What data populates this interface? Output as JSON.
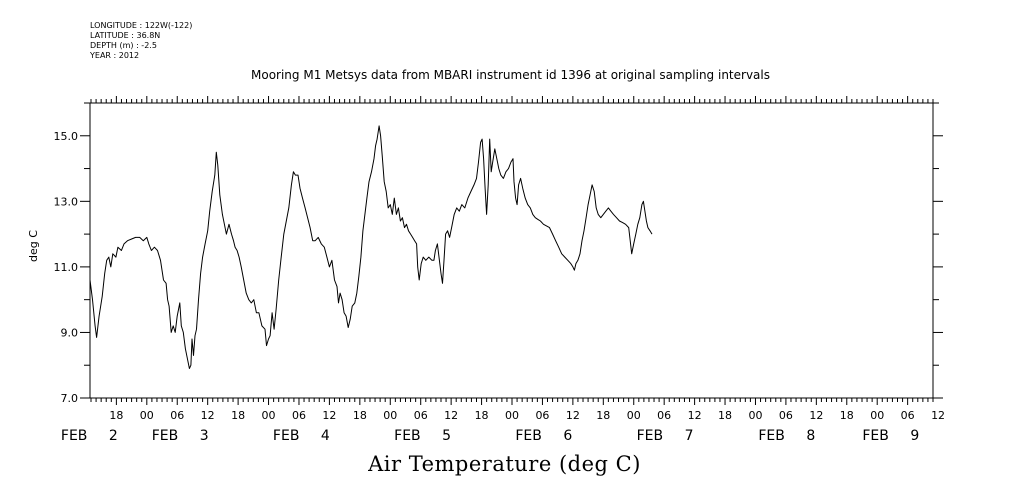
{
  "meta": {
    "longitude": "LONGITUDE : 122W(-122)",
    "latitude": "LATITUDE : 36.8N",
    "depth": "DEPTH (m) : -2.5",
    "year": "YEAR : 2012"
  },
  "chart_data": {
    "type": "line",
    "title": "Mooring M1 Metsys data from MBARI instrument id 1396 at original sampling intervals",
    "bottom_title": "Air Temperature (deg C)",
    "ylabel": "deg C",
    "ylim": [
      7.0,
      16.0
    ],
    "yticks": [
      7.0,
      9.0,
      11.0,
      13.0,
      15.0
    ],
    "ytick_labels": [
      "7.0",
      "9.0",
      "11.0",
      "13.0",
      "15.0"
    ],
    "x_unit": "hours since FEB 1 00:00 (2012)",
    "xlim": [
      36.8,
      203.0
    ],
    "hour_ticks": [
      {
        "x": 42,
        "label": "18"
      },
      {
        "x": 48,
        "label": "00"
      },
      {
        "x": 54,
        "label": "06"
      },
      {
        "x": 60,
        "label": "12"
      },
      {
        "x": 66,
        "label": "18"
      },
      {
        "x": 72,
        "label": "00"
      },
      {
        "x": 78,
        "label": "06"
      },
      {
        "x": 84,
        "label": "12"
      },
      {
        "x": 90,
        "label": "18"
      },
      {
        "x": 96,
        "label": "00"
      },
      {
        "x": 102,
        "label": "06"
      },
      {
        "x": 108,
        "label": "12"
      },
      {
        "x": 114,
        "label": "18"
      },
      {
        "x": 120,
        "label": "00"
      },
      {
        "x": 126,
        "label": "06"
      },
      {
        "x": 132,
        "label": "12"
      },
      {
        "x": 138,
        "label": "18"
      },
      {
        "x": 144,
        "label": "00"
      },
      {
        "x": 150,
        "label": "06"
      },
      {
        "x": 156,
        "label": "12"
      },
      {
        "x": 162,
        "label": "18"
      },
      {
        "x": 168,
        "label": "00"
      },
      {
        "x": 174,
        "label": "06"
      },
      {
        "x": 180,
        "label": "12"
      },
      {
        "x": 186,
        "label": "18"
      },
      {
        "x": 192,
        "label": "00"
      },
      {
        "x": 198,
        "label": "06"
      },
      {
        "x": 204,
        "label": "12"
      }
    ],
    "date_labels": [
      {
        "x": 42.5,
        "month": "FEB",
        "day": "2"
      },
      {
        "x": 60.4,
        "month": "FEB",
        "day": "3"
      },
      {
        "x": 84.3,
        "month": "FEB",
        "day": "4"
      },
      {
        "x": 108.2,
        "month": "FEB",
        "day": "5"
      },
      {
        "x": 132.1,
        "month": "FEB",
        "day": "6"
      },
      {
        "x": 156.0,
        "month": "FEB",
        "day": "7"
      },
      {
        "x": 180.0,
        "month": "FEB",
        "day": "8"
      },
      {
        "x": 200.5,
        "month": "FEB",
        "day": "9"
      }
    ],
    "series": [
      {
        "color": "#000000",
        "points": [
          [
            36.8,
            10.6
          ],
          [
            37.3,
            10.0
          ],
          [
            37.8,
            9.2
          ],
          [
            38.1,
            8.85
          ],
          [
            38.6,
            9.5
          ],
          [
            39.2,
            10.1
          ],
          [
            39.7,
            10.8
          ],
          [
            40.1,
            11.2
          ],
          [
            40.5,
            11.3
          ],
          [
            40.9,
            11.0
          ],
          [
            41.3,
            11.4
          ],
          [
            41.9,
            11.3
          ],
          [
            42.3,
            11.6
          ],
          [
            43.0,
            11.5
          ],
          [
            43.5,
            11.7
          ],
          [
            44.2,
            11.8
          ],
          [
            45.0,
            11.85
          ],
          [
            45.8,
            11.9
          ],
          [
            46.6,
            11.9
          ],
          [
            47.3,
            11.8
          ],
          [
            48.0,
            11.9
          ],
          [
            48.4,
            11.7
          ],
          [
            48.9,
            11.5
          ],
          [
            49.5,
            11.6
          ],
          [
            50.1,
            11.5
          ],
          [
            50.7,
            11.2
          ],
          [
            51.3,
            10.6
          ],
          [
            51.8,
            10.5
          ],
          [
            52.1,
            10.0
          ],
          [
            52.4,
            9.8
          ],
          [
            52.8,
            9.0
          ],
          [
            53.2,
            9.2
          ],
          [
            53.6,
            9.0
          ],
          [
            54.0,
            9.5
          ],
          [
            54.5,
            9.9
          ],
          [
            54.8,
            9.2
          ],
          [
            55.2,
            9.0
          ],
          [
            55.6,
            8.5
          ],
          [
            56.0,
            8.2
          ],
          [
            56.4,
            7.9
          ],
          [
            56.7,
            8.0
          ],
          [
            56.9,
            8.8
          ],
          [
            57.2,
            8.3
          ],
          [
            57.5,
            8.9
          ],
          [
            57.8,
            9.1
          ],
          [
            58.2,
            10.0
          ],
          [
            58.6,
            10.8
          ],
          [
            59.0,
            11.3
          ],
          [
            59.5,
            11.7
          ],
          [
            60.0,
            12.1
          ],
          [
            60.4,
            12.7
          ],
          [
            60.9,
            13.3
          ],
          [
            61.4,
            13.8
          ],
          [
            61.7,
            14.5
          ],
          [
            62.0,
            14.1
          ],
          [
            62.4,
            13.2
          ],
          [
            62.9,
            12.6
          ],
          [
            63.3,
            12.3
          ],
          [
            63.7,
            12.0
          ],
          [
            64.2,
            12.3
          ],
          [
            64.7,
            12.0
          ],
          [
            65.1,
            11.8
          ],
          [
            65.4,
            11.6
          ],
          [
            65.8,
            11.5
          ],
          [
            66.2,
            11.3
          ],
          [
            66.6,
            11.0
          ],
          [
            67.1,
            10.6
          ],
          [
            67.6,
            10.2
          ],
          [
            68.1,
            10.0
          ],
          [
            68.6,
            9.9
          ],
          [
            69.1,
            10.0
          ],
          [
            69.6,
            9.6
          ],
          [
            70.1,
            9.6
          ],
          [
            70.7,
            9.2
          ],
          [
            71.3,
            9.1
          ],
          [
            71.6,
            8.6
          ],
          [
            72.0,
            8.8
          ],
          [
            72.3,
            8.9
          ],
          [
            72.7,
            9.6
          ],
          [
            73.1,
            9.1
          ],
          [
            73.5,
            9.7
          ],
          [
            74.0,
            10.6
          ],
          [
            74.5,
            11.3
          ],
          [
            75.0,
            12.0
          ],
          [
            75.5,
            12.4
          ],
          [
            76.0,
            12.8
          ],
          [
            76.5,
            13.5
          ],
          [
            76.9,
            13.9
          ],
          [
            77.3,
            13.8
          ],
          [
            77.8,
            13.8
          ],
          [
            78.2,
            13.4
          ],
          [
            78.7,
            13.1
          ],
          [
            79.2,
            12.8
          ],
          [
            79.7,
            12.5
          ],
          [
            80.2,
            12.2
          ],
          [
            80.7,
            11.8
          ],
          [
            81.2,
            11.8
          ],
          [
            81.8,
            11.9
          ],
          [
            82.4,
            11.7
          ],
          [
            83.0,
            11.6
          ],
          [
            83.5,
            11.3
          ],
          [
            84.0,
            11.0
          ],
          [
            84.5,
            11.2
          ],
          [
            85.0,
            10.6
          ],
          [
            85.5,
            10.4
          ],
          [
            85.8,
            9.9
          ],
          [
            86.1,
            10.2
          ],
          [
            86.5,
            10.0
          ],
          [
            86.9,
            9.6
          ],
          [
            87.3,
            9.5
          ],
          [
            87.7,
            9.15
          ],
          [
            88.1,
            9.4
          ],
          [
            88.5,
            9.8
          ],
          [
            89.0,
            9.9
          ],
          [
            89.4,
            10.2
          ],
          [
            89.8,
            10.7
          ],
          [
            90.2,
            11.3
          ],
          [
            90.6,
            12.1
          ],
          [
            91.0,
            12.6
          ],
          [
            91.4,
            13.1
          ],
          [
            91.8,
            13.6
          ],
          [
            92.3,
            13.9
          ],
          [
            92.8,
            14.3
          ],
          [
            93.1,
            14.7
          ],
          [
            93.4,
            14.9
          ],
          [
            93.8,
            15.3
          ],
          [
            94.1,
            15.0
          ],
          [
            94.4,
            14.4
          ],
          [
            94.8,
            13.6
          ],
          [
            95.2,
            13.3
          ],
          [
            95.6,
            12.8
          ],
          [
            96.0,
            12.9
          ],
          [
            96.4,
            12.6
          ],
          [
            96.8,
            13.1
          ],
          [
            97.2,
            12.6
          ],
          [
            97.6,
            12.8
          ],
          [
            98.0,
            12.4
          ],
          [
            98.4,
            12.5
          ],
          [
            98.8,
            12.2
          ],
          [
            99.2,
            12.3
          ],
          [
            99.6,
            12.1
          ],
          [
            100.0,
            12.0
          ],
          [
            100.4,
            11.9
          ],
          [
            100.8,
            11.8
          ],
          [
            101.2,
            11.7
          ],
          [
            101.4,
            11.0
          ],
          [
            101.7,
            10.6
          ],
          [
            102.1,
            11.1
          ],
          [
            102.5,
            11.3
          ],
          [
            103.0,
            11.2
          ],
          [
            103.6,
            11.3
          ],
          [
            104.2,
            11.2
          ],
          [
            104.6,
            11.2
          ],
          [
            104.9,
            11.5
          ],
          [
            105.3,
            11.7
          ],
          [
            105.6,
            11.3
          ],
          [
            106.0,
            10.8
          ],
          [
            106.3,
            10.5
          ],
          [
            106.6,
            11.2
          ],
          [
            106.9,
            12.0
          ],
          [
            107.3,
            12.1
          ],
          [
            107.7,
            11.9
          ],
          [
            108.1,
            12.2
          ],
          [
            108.6,
            12.6
          ],
          [
            109.1,
            12.8
          ],
          [
            109.6,
            12.7
          ],
          [
            110.1,
            12.9
          ],
          [
            110.7,
            12.8
          ],
          [
            111.3,
            13.1
          ],
          [
            111.9,
            13.3
          ],
          [
            112.5,
            13.5
          ],
          [
            113.0,
            13.7
          ],
          [
            113.4,
            14.2
          ],
          [
            113.8,
            14.8
          ],
          [
            114.1,
            14.9
          ],
          [
            114.4,
            14.3
          ],
          [
            114.7,
            13.4
          ],
          [
            115.0,
            12.6
          ],
          [
            115.3,
            13.5
          ],
          [
            115.6,
            14.9
          ],
          [
            115.9,
            13.9
          ],
          [
            116.2,
            14.2
          ],
          [
            116.6,
            14.6
          ],
          [
            117.0,
            14.3
          ],
          [
            117.4,
            14.0
          ],
          [
            117.8,
            13.8
          ],
          [
            118.3,
            13.7
          ],
          [
            118.8,
            13.9
          ],
          [
            119.3,
            14.0
          ],
          [
            119.8,
            14.2
          ],
          [
            120.2,
            14.3
          ],
          [
            120.4,
            13.6
          ],
          [
            120.7,
            13.1
          ],
          [
            121.0,
            12.9
          ],
          [
            121.3,
            13.5
          ],
          [
            121.7,
            13.7
          ],
          [
            122.1,
            13.4
          ],
          [
            122.6,
            13.1
          ],
          [
            123.1,
            12.9
          ],
          [
            123.6,
            12.8
          ],
          [
            124.1,
            12.6
          ],
          [
            124.6,
            12.5
          ],
          [
            125.1,
            12.45
          ],
          [
            125.6,
            12.4
          ],
          [
            126.2,
            12.3
          ],
          [
            126.8,
            12.25
          ],
          [
            127.4,
            12.2
          ],
          [
            128.0,
            12.0
          ],
          [
            128.6,
            11.8
          ],
          [
            129.2,
            11.6
          ],
          [
            129.8,
            11.4
          ],
          [
            130.4,
            11.3
          ],
          [
            131.0,
            11.2
          ],
          [
            131.6,
            11.1
          ],
          [
            132.0,
            11.0
          ],
          [
            132.3,
            10.9
          ],
          [
            132.6,
            11.1
          ],
          [
            133.0,
            11.2
          ],
          [
            133.4,
            11.4
          ],
          [
            133.8,
            11.8
          ],
          [
            134.2,
            12.1
          ],
          [
            134.6,
            12.5
          ],
          [
            135.0,
            12.9
          ],
          [
            135.4,
            13.2
          ],
          [
            135.8,
            13.5
          ],
          [
            136.2,
            13.3
          ],
          [
            136.6,
            12.8
          ],
          [
            137.0,
            12.6
          ],
          [
            137.5,
            12.5
          ],
          [
            138.0,
            12.6
          ],
          [
            138.5,
            12.7
          ],
          [
            139.0,
            12.8
          ],
          [
            139.5,
            12.7
          ],
          [
            140.0,
            12.6
          ],
          [
            140.6,
            12.5
          ],
          [
            141.2,
            12.4
          ],
          [
            141.8,
            12.35
          ],
          [
            142.4,
            12.3
          ],
          [
            143.0,
            12.2
          ],
          [
            143.3,
            11.8
          ],
          [
            143.6,
            11.4
          ],
          [
            144.0,
            11.7
          ],
          [
            144.4,
            12.0
          ],
          [
            144.8,
            12.3
          ],
          [
            145.2,
            12.5
          ],
          [
            145.6,
            12.9
          ],
          [
            145.9,
            13.0
          ],
          [
            146.2,
            12.7
          ],
          [
            146.5,
            12.4
          ],
          [
            146.8,
            12.2
          ],
          [
            147.2,
            12.1
          ],
          [
            147.6,
            12.0
          ]
        ]
      }
    ]
  }
}
